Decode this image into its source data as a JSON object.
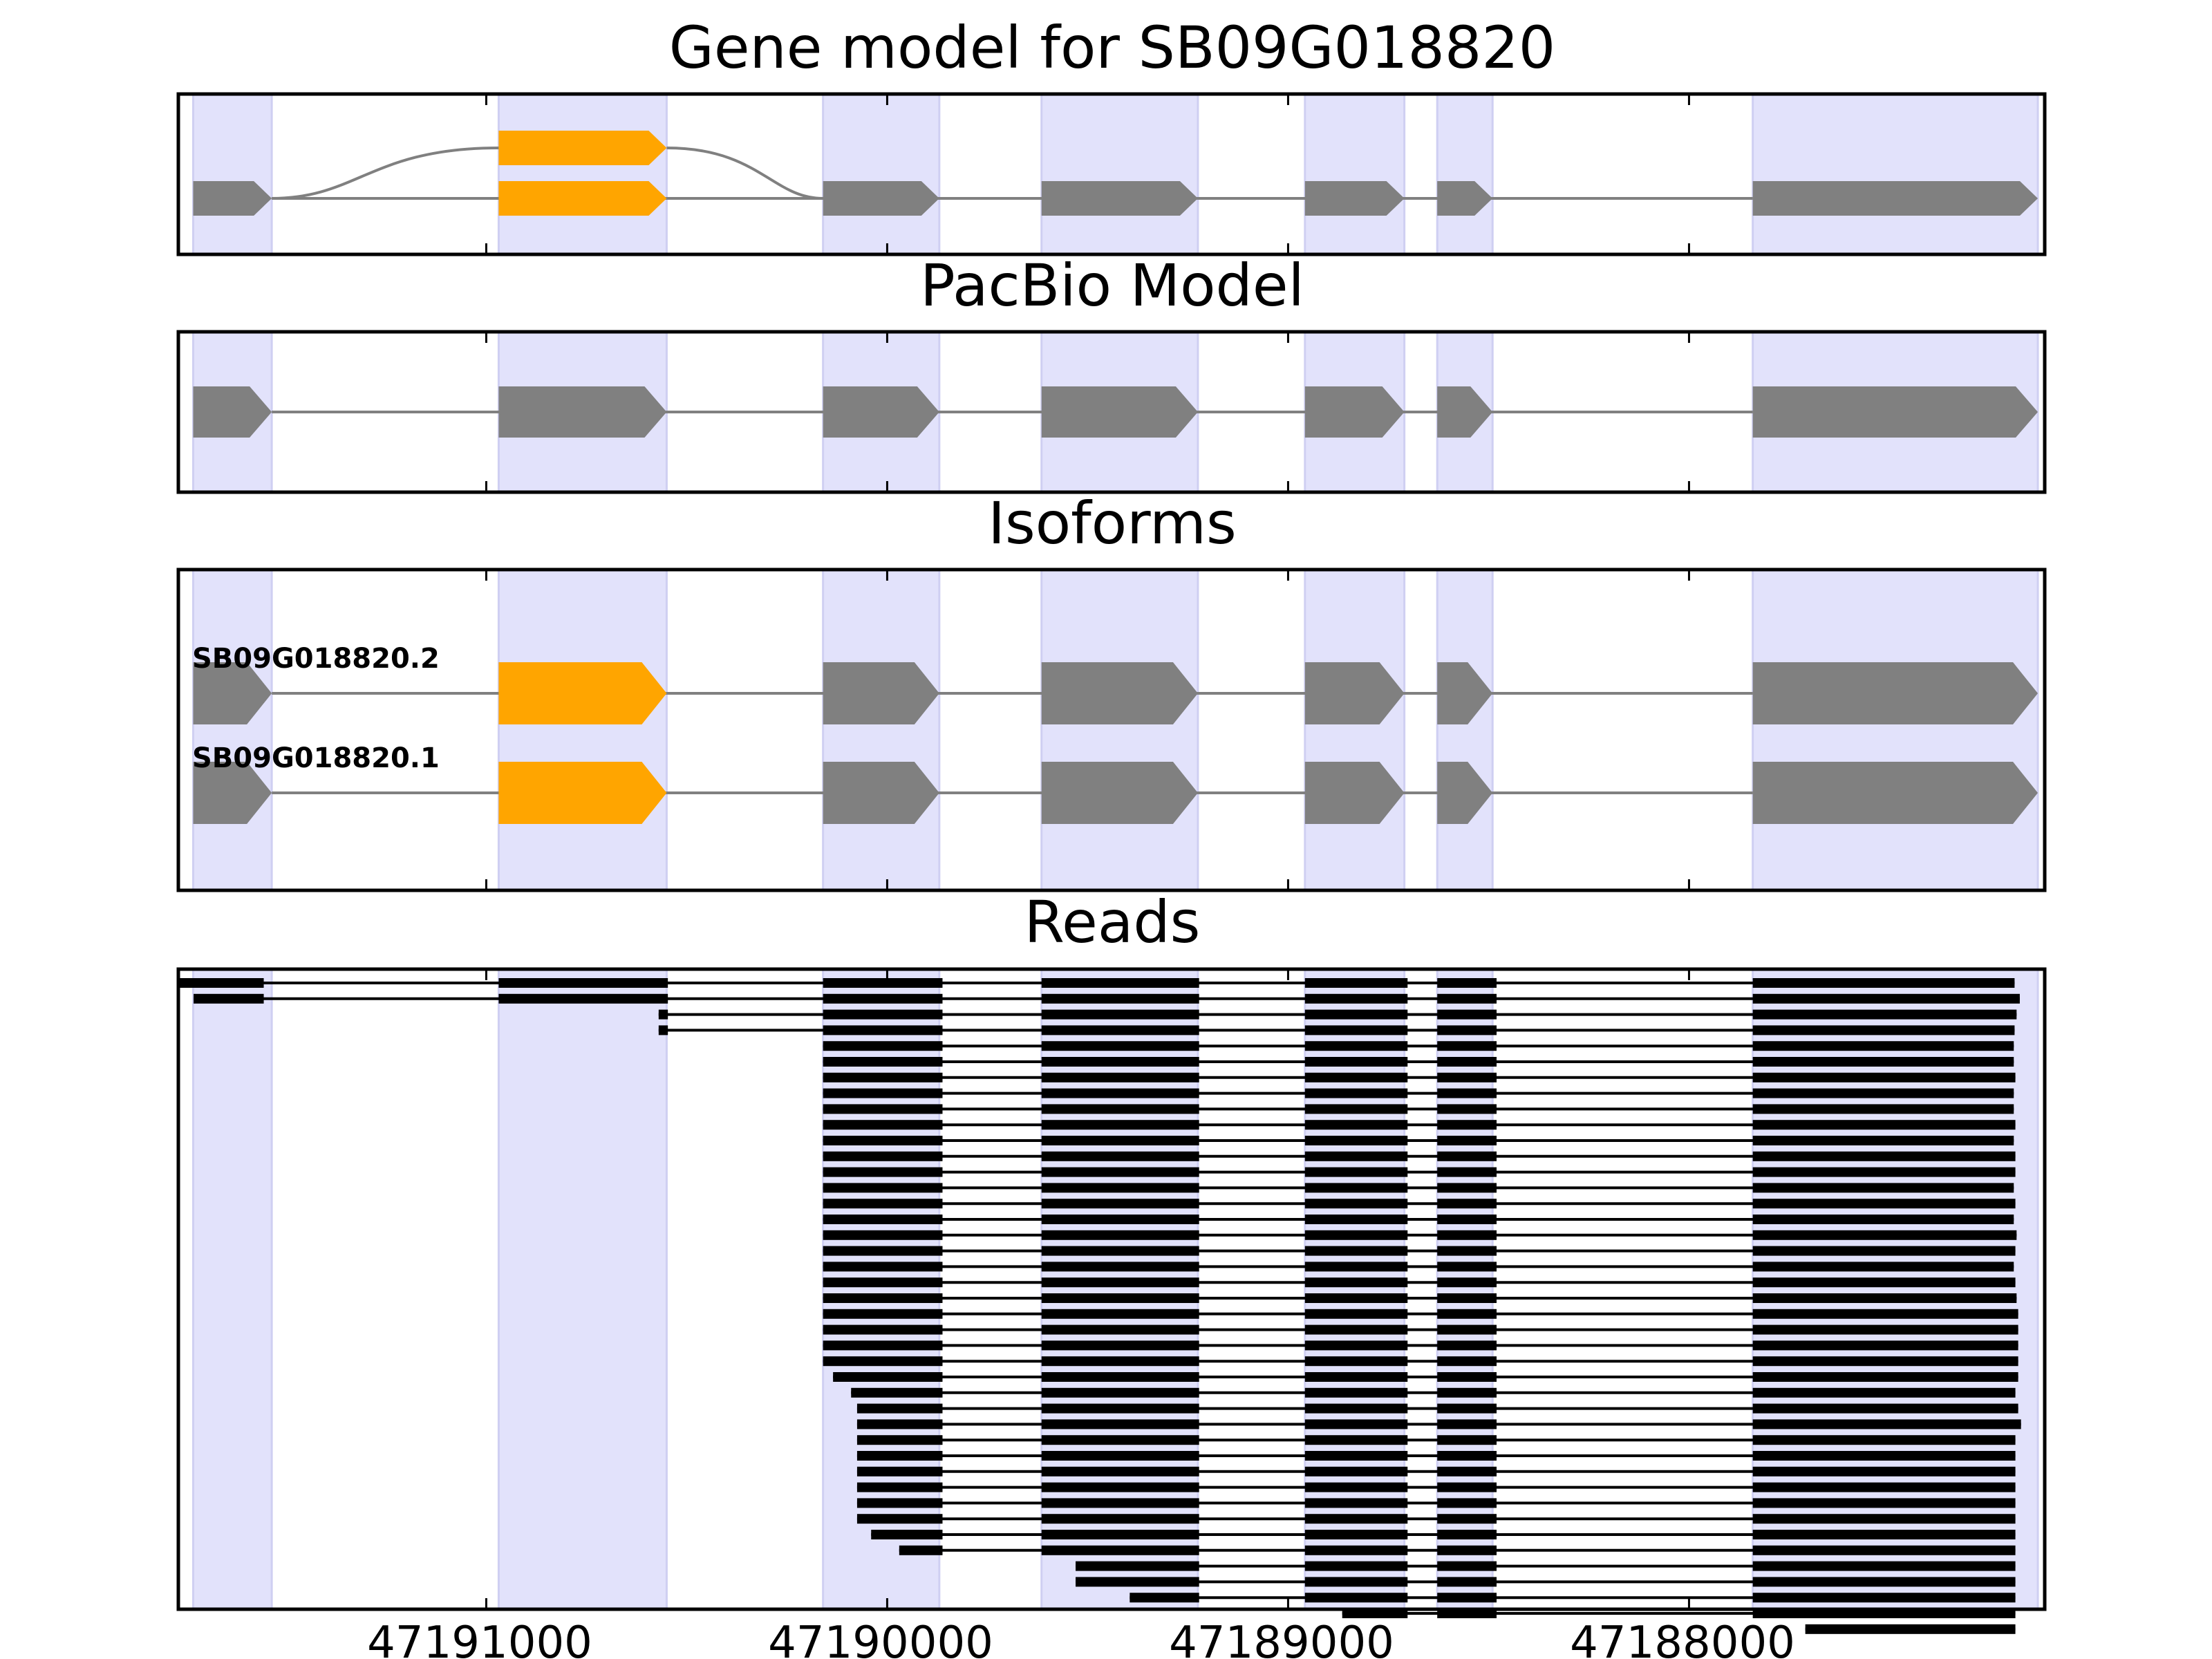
{
  "colors": {
    "exon": "#808080",
    "alt_exon": "#ffa500",
    "shade": "#e2e2fb",
    "shade_edge": "#cfcff2",
    "intron": "#808080",
    "read": "#000000",
    "frame": "#000000"
  },
  "genome": {
    "left_coord": 47191768,
    "right_coord": 47187088,
    "strand": "-"
  },
  "panels": {
    "gene_model": {
      "title": "Gene model for SB09G018820"
    },
    "pacbio": {
      "title": "PacBio Model"
    },
    "isoforms": {
      "title": "Isoforms",
      "labels": [
        "SB09G018820.2",
        "SB09G018820.1"
      ]
    },
    "reads": {
      "title": "Reads"
    }
  },
  "axis": {
    "ticks": [
      47191000,
      47190000,
      47189000,
      47188000
    ],
    "tick_labels": [
      "47191000",
      "47190000",
      "47189000",
      "47188000"
    ]
  },
  "chart_data": {
    "type": "gene-structure",
    "exons": [
      [
        47191731,
        47191535
      ],
      [
        47190969,
        47190550
      ],
      [
        47190160,
        47189870
      ],
      [
        47189615,
        47189225
      ],
      [
        47188958,
        47188710
      ],
      [
        47188628,
        47188490
      ],
      [
        47187841,
        47187130
      ]
    ],
    "alternative_exon_index": 1,
    "gene_model_splicing": "exon 2 alternatively skipped (orange) in upper path",
    "isoforms": [
      {
        "name": "SB09G018820.2",
        "exons": [
          0,
          1,
          2,
          3,
          4,
          5,
          6
        ]
      },
      {
        "name": "SB09G018820.1",
        "exons": [
          0,
          1,
          2,
          3,
          4,
          5,
          6
        ]
      }
    ],
    "reads": [
      [
        [
          47191770,
          47191555
        ],
        [
          47190969,
          47190547
        ],
        [
          47190160,
          47189862
        ],
        [
          47189615,
          47189222
        ],
        [
          47188958,
          47188702
        ],
        [
          47188628,
          47188480
        ],
        [
          47187841,
          47187188
        ]
      ],
      [
        [
          47191730,
          47191555
        ],
        [
          47190969,
          47190547
        ],
        [
          47190160,
          47189862
        ],
        [
          47189615,
          47189222
        ],
        [
          47188958,
          47188702
        ],
        [
          47188628,
          47188480
        ],
        [
          47187841,
          47187175
        ]
      ],
      [
        [
          47190570,
          47190547
        ],
        [
          47190160,
          47189862
        ],
        [
          47189615,
          47189222
        ],
        [
          47188958,
          47188702
        ],
        [
          47188628,
          47188480
        ],
        [
          47187841,
          47187183
        ]
      ],
      [
        [
          47190570,
          47190547
        ],
        [
          47190160,
          47189862
        ],
        [
          47189615,
          47189222
        ],
        [
          47188958,
          47188702
        ],
        [
          47188628,
          47188480
        ],
        [
          47187841,
          47187188
        ]
      ],
      [
        [
          47190160,
          47189862
        ],
        [
          47189615,
          47189222
        ],
        [
          47188958,
          47188702
        ],
        [
          47188628,
          47188480
        ],
        [
          47187841,
          47187190
        ]
      ],
      [
        [
          47190160,
          47189862
        ],
        [
          47189615,
          47189222
        ],
        [
          47188958,
          47188702
        ],
        [
          47188628,
          47188480
        ],
        [
          47187841,
          47187190
        ]
      ],
      [
        [
          47190160,
          47189862
        ],
        [
          47189615,
          47189222
        ],
        [
          47188958,
          47188702
        ],
        [
          47188628,
          47188480
        ],
        [
          47187841,
          47187186
        ]
      ],
      [
        [
          47190160,
          47189862
        ],
        [
          47189615,
          47189222
        ],
        [
          47188958,
          47188702
        ],
        [
          47188628,
          47188480
        ],
        [
          47187841,
          47187190
        ]
      ],
      [
        [
          47190160,
          47189862
        ],
        [
          47189615,
          47189222
        ],
        [
          47188958,
          47188702
        ],
        [
          47188628,
          47188480
        ],
        [
          47187841,
          47187190
        ]
      ],
      [
        [
          47190160,
          47189862
        ],
        [
          47189615,
          47189222
        ],
        [
          47188958,
          47188702
        ],
        [
          47188628,
          47188480
        ],
        [
          47187841,
          47187186
        ]
      ],
      [
        [
          47190160,
          47189862
        ],
        [
          47189615,
          47189222
        ],
        [
          47188958,
          47188702
        ],
        [
          47188628,
          47188480
        ],
        [
          47187841,
          47187190
        ]
      ],
      [
        [
          47190160,
          47189862
        ],
        [
          47189615,
          47189222
        ],
        [
          47188958,
          47188702
        ],
        [
          47188628,
          47188480
        ],
        [
          47187841,
          47187186
        ]
      ],
      [
        [
          47190160,
          47189862
        ],
        [
          47189615,
          47189222
        ],
        [
          47188958,
          47188702
        ],
        [
          47188628,
          47188480
        ],
        [
          47187841,
          47187186
        ]
      ],
      [
        [
          47190160,
          47189862
        ],
        [
          47189615,
          47189222
        ],
        [
          47188958,
          47188702
        ],
        [
          47188628,
          47188480
        ],
        [
          47187841,
          47187190
        ]
      ],
      [
        [
          47190160,
          47189862
        ],
        [
          47189615,
          47189222
        ],
        [
          47188958,
          47188702
        ],
        [
          47188628,
          47188480
        ],
        [
          47187841,
          47187186
        ]
      ],
      [
        [
          47190160,
          47189862
        ],
        [
          47189615,
          47189222
        ],
        [
          47188958,
          47188702
        ],
        [
          47188628,
          47188480
        ],
        [
          47187841,
          47187190
        ]
      ],
      [
        [
          47190160,
          47189862
        ],
        [
          47189615,
          47189222
        ],
        [
          47188958,
          47188702
        ],
        [
          47188628,
          47188480
        ],
        [
          47187841,
          47187183
        ]
      ],
      [
        [
          47190160,
          47189862
        ],
        [
          47189615,
          47189222
        ],
        [
          47188958,
          47188702
        ],
        [
          47188628,
          47188480
        ],
        [
          47187841,
          47187186
        ]
      ],
      [
        [
          47190160,
          47189862
        ],
        [
          47189615,
          47189222
        ],
        [
          47188958,
          47188702
        ],
        [
          47188628,
          47188480
        ],
        [
          47187841,
          47187190
        ]
      ],
      [
        [
          47190160,
          47189862
        ],
        [
          47189615,
          47189222
        ],
        [
          47188958,
          47188702
        ],
        [
          47188628,
          47188480
        ],
        [
          47187841,
          47187186
        ]
      ],
      [
        [
          47190160,
          47189862
        ],
        [
          47189615,
          47189222
        ],
        [
          47188958,
          47188702
        ],
        [
          47188628,
          47188480
        ],
        [
          47187841,
          47187183
        ]
      ],
      [
        [
          47190160,
          47189862
        ],
        [
          47189615,
          47189222
        ],
        [
          47188958,
          47188702
        ],
        [
          47188628,
          47188480
        ],
        [
          47187841,
          47187179
        ]
      ],
      [
        [
          47190160,
          47189862
        ],
        [
          47189615,
          47189222
        ],
        [
          47188958,
          47188702
        ],
        [
          47188628,
          47188480
        ],
        [
          47187841,
          47187179
        ]
      ],
      [
        [
          47190160,
          47189862
        ],
        [
          47189615,
          47189222
        ],
        [
          47188958,
          47188702
        ],
        [
          47188628,
          47188480
        ],
        [
          47187841,
          47187179
        ]
      ],
      [
        [
          47190160,
          47189862
        ],
        [
          47189615,
          47189222
        ],
        [
          47188958,
          47188702
        ],
        [
          47188628,
          47188480
        ],
        [
          47187841,
          47187179
        ]
      ],
      [
        [
          47190135,
          47189862
        ],
        [
          47189615,
          47189222
        ],
        [
          47188958,
          47188702
        ],
        [
          47188628,
          47188480
        ],
        [
          47187841,
          47187179
        ]
      ],
      [
        [
          47190090,
          47189862
        ],
        [
          47189615,
          47189222
        ],
        [
          47188958,
          47188702
        ],
        [
          47188628,
          47188480
        ],
        [
          47187841,
          47187186
        ]
      ],
      [
        [
          47190075,
          47189862
        ],
        [
          47189615,
          47189222
        ],
        [
          47188958,
          47188702
        ],
        [
          47188628,
          47188480
        ],
        [
          47187841,
          47187179
        ]
      ],
      [
        [
          47190075,
          47189862
        ],
        [
          47189615,
          47189222
        ],
        [
          47188958,
          47188702
        ],
        [
          47188628,
          47188480
        ],
        [
          47187841,
          47187172
        ]
      ],
      [
        [
          47190075,
          47189862
        ],
        [
          47189615,
          47189222
        ],
        [
          47188958,
          47188702
        ],
        [
          47188628,
          47188480
        ],
        [
          47187841,
          47187186
        ]
      ],
      [
        [
          47190075,
          47189862
        ],
        [
          47189615,
          47189222
        ],
        [
          47188958,
          47188702
        ],
        [
          47188628,
          47188480
        ],
        [
          47187841,
          47187186
        ]
      ],
      [
        [
          47190075,
          47189862
        ],
        [
          47189615,
          47189222
        ],
        [
          47188958,
          47188702
        ],
        [
          47188628,
          47188480
        ],
        [
          47187841,
          47187186
        ]
      ],
      [
        [
          47190075,
          47189862
        ],
        [
          47189615,
          47189222
        ],
        [
          47188958,
          47188702
        ],
        [
          47188628,
          47188480
        ],
        [
          47187841,
          47187186
        ]
      ],
      [
        [
          47190075,
          47189862
        ],
        [
          47189615,
          47189222
        ],
        [
          47188958,
          47188702
        ],
        [
          47188628,
          47188480
        ],
        [
          47187841,
          47187186
        ]
      ],
      [
        [
          47190075,
          47189862
        ],
        [
          47189615,
          47189222
        ],
        [
          47188958,
          47188702
        ],
        [
          47188628,
          47188480
        ],
        [
          47187841,
          47187186
        ]
      ],
      [
        [
          47190040,
          47189862
        ],
        [
          47189615,
          47189222
        ],
        [
          47188958,
          47188702
        ],
        [
          47188628,
          47188480
        ],
        [
          47187841,
          47187186
        ]
      ],
      [
        [
          47189970,
          47189862
        ],
        [
          47189615,
          47189222
        ],
        [
          47188958,
          47188702
        ],
        [
          47188628,
          47188480
        ],
        [
          47187841,
          47187186
        ]
      ],
      [
        [
          47189530,
          47189222
        ],
        [
          47188958,
          47188702
        ],
        [
          47188628,
          47188480
        ],
        [
          47187841,
          47187186
        ]
      ],
      [
        [
          47189530,
          47189222
        ],
        [
          47188958,
          47188702
        ],
        [
          47188628,
          47188480
        ],
        [
          47187841,
          47187186
        ]
      ],
      [
        [
          47189395,
          47189222
        ],
        [
          47188958,
          47188702
        ],
        [
          47188628,
          47188480
        ],
        [
          47187841,
          47187186
        ]
      ],
      [
        [
          47188865,
          47188702
        ],
        [
          47188628,
          47188480
        ],
        [
          47187841,
          47187186
        ]
      ],
      [
        [
          47187710,
          47187186
        ]
      ]
    ]
  }
}
